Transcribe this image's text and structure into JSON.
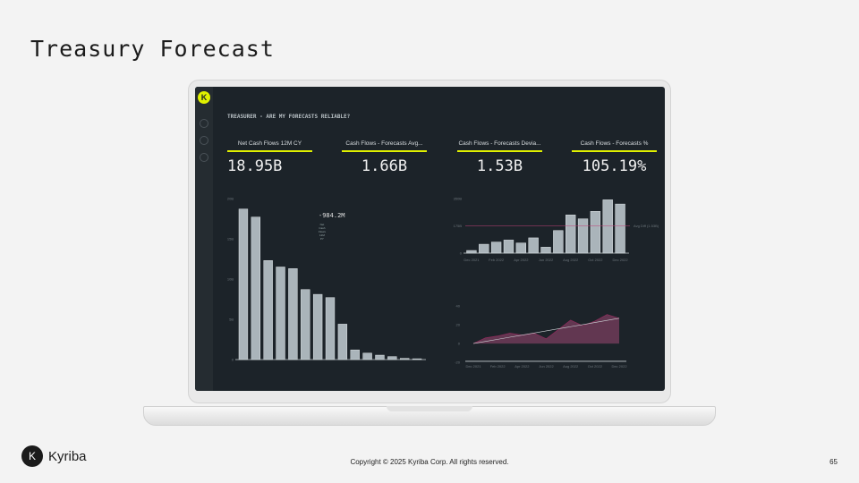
{
  "slide": {
    "title": "Treasury Forecast",
    "copyright": "Copyright © 2025 Kyriba Corp. All rights reserved.",
    "page": "65",
    "brand": "Kyriba"
  },
  "dashboard": {
    "heading": "TREASURER - ARE MY FORECASTS RELIABLE?",
    "kpis": [
      {
        "label": "Net Cash Flows 12M CY",
        "value": "18.95B",
        "delta": "-984.2M",
        "delta_label": "Net Cash Flows 12M PY"
      },
      {
        "label": "Cash Flows - Forecasts Avg...",
        "value": "1.66B"
      },
      {
        "label": "Cash Flows - Forecasts Devia...",
        "value": "1.53B"
      },
      {
        "label": "Cash Flows - Forecasts %",
        "value": "105.19%"
      }
    ]
  },
  "colors": {
    "bar": "#aab4ba",
    "accent": "#e0f000",
    "avg_line": "#c2417a",
    "area": "#6a3a55"
  },
  "chart_data": [
    {
      "type": "bar",
      "yticks": [
        "0",
        "5B",
        "10B",
        "15B",
        "20B"
      ],
      "ylim": [
        0,
        20
      ],
      "values": [
        18.7,
        17.7,
        12.3,
        11.5,
        11.3,
        8.7,
        8.1,
        7.7,
        4.4,
        1.2,
        0.8,
        0.55,
        0.37,
        0.15,
        0.1
      ]
    },
    {
      "type": "bar",
      "yticks": [
        "0",
        "175B",
        "350B"
      ],
      "ylim": [
        0,
        350
      ],
      "xticks": [
        "Dec 2021",
        "Feb 2022",
        "Apr 2022",
        "Jun 2022",
        "Aug 2022",
        "Oct 2022",
        "Dec 2022"
      ],
      "values": [
        17,
        57,
        71,
        84,
        65,
        98,
        38,
        145,
        245,
        220,
        268,
        342,
        315
      ],
      "avg": 175,
      "avg_label": "Avg Diff (1.53B)"
    },
    {
      "type": "area",
      "yticks": [
        "-20",
        "0",
        "20",
        "40"
      ],
      "ylim": [
        -20,
        45
      ],
      "xticks": [
        "Dec 2021",
        "Feb 2022",
        "Apr 2022",
        "Jun 2022",
        "Aug 2022",
        "Oct 2022",
        "Dec 2022"
      ],
      "actual": [
        0,
        6,
        8,
        11,
        9,
        11,
        5,
        15,
        25,
        19,
        24,
        31,
        27
      ],
      "trend": [
        0,
        2.25,
        4.5,
        6.75,
        9,
        11.25,
        13.5,
        15.75,
        18,
        20.25,
        22.5,
        24.75,
        27
      ]
    }
  ]
}
